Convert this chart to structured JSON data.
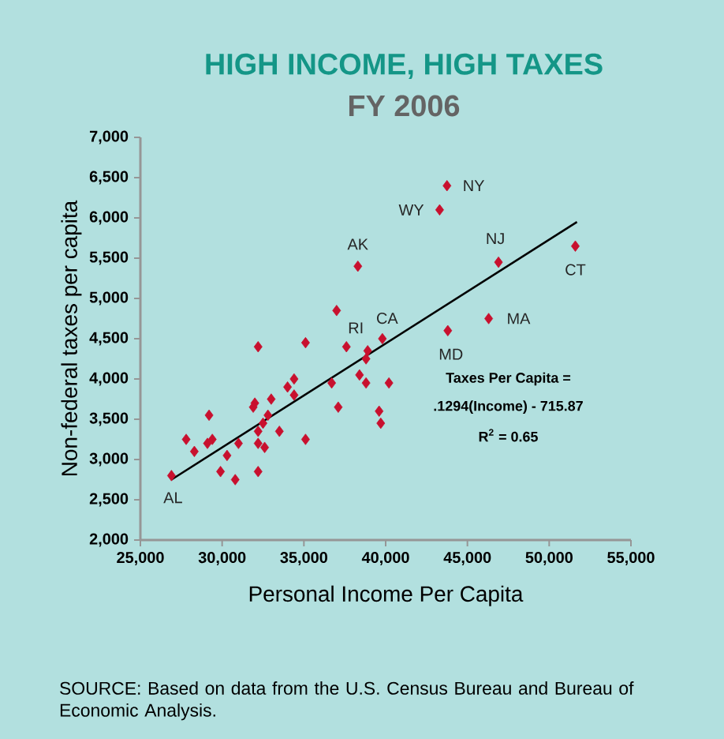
{
  "chart_data": {
    "type": "scatter",
    "title": "HIGH INCOME, HIGH TAXES",
    "subtitle": "FY 2006",
    "xlabel": "Personal Income Per Capita",
    "ylabel": "Non-federal taxes per capita",
    "xlim": [
      25000,
      55000
    ],
    "ylim": [
      2000,
      7000
    ],
    "xticks": [
      {
        "value": 25000,
        "label": "25,000"
      },
      {
        "value": 30000,
        "label": "30,000"
      },
      {
        "value": 35000,
        "label": "35,000"
      },
      {
        "value": 40000,
        "label": "40,000"
      },
      {
        "value": 45000,
        "label": "45,000"
      },
      {
        "value": 50000,
        "label": "50,000"
      },
      {
        "value": 55000,
        "label": "55,000"
      }
    ],
    "yticks": [
      {
        "value": 2000,
        "label": "2,000"
      },
      {
        "value": 2500,
        "label": "2,500"
      },
      {
        "value": 3000,
        "label": "3,000"
      },
      {
        "value": 3500,
        "label": "3,500"
      },
      {
        "value": 4000,
        "label": "4,000"
      },
      {
        "value": 4500,
        "label": "4,500"
      },
      {
        "value": 5000,
        "label": "5,000"
      },
      {
        "value": 5500,
        "label": "5,500"
      },
      {
        "value": 6000,
        "label": "6,000"
      },
      {
        "value": 6500,
        "label": "6,500"
      },
      {
        "value": 7000,
        "label": "7,000"
      }
    ],
    "grid": false,
    "series": [
      {
        "type": "scatter",
        "marker": "diamond",
        "color": "#c8102e",
        "x": [
          43750,
          43300,
          38300,
          46900,
          51600,
          46300,
          43800,
          39800,
          37600,
          26900,
          37000,
          32200,
          35100,
          38900,
          38800,
          38400,
          38800,
          36700,
          40200,
          37100,
          39600,
          39700,
          34400,
          34000,
          34400,
          33000,
          32000,
          31900,
          32800,
          32500,
          33500,
          32200,
          32200,
          32600,
          35100,
          29200,
          27800,
          28300,
          29100,
          29400,
          31000,
          30300,
          29900,
          30800,
          32200
        ],
        "values": [
          6400,
          6100,
          5400,
          5450,
          5650,
          4750,
          4600,
          4500,
          4400,
          2800,
          4850,
          4400,
          4450,
          4350,
          4250,
          4050,
          3950,
          3950,
          3950,
          3650,
          3600,
          3450,
          4000,
          3900,
          3800,
          3750,
          3700,
          3650,
          3550,
          3450,
          3350,
          3350,
          3200,
          3150,
          3250,
          3550,
          3250,
          3100,
          3200,
          3250,
          3200,
          3050,
          2850,
          2750,
          2850
        ]
      },
      {
        "type": "line",
        "color": "#000000",
        "x": [
          26900,
          51700
        ],
        "values": [
          2750,
          5950
        ]
      }
    ],
    "annotations": [
      {
        "text": "NY",
        "x": 43750,
        "y": 6400
      },
      {
        "text": "WY",
        "x": 43300,
        "y": 6100
      },
      {
        "text": "AK",
        "x": 38300,
        "y": 5400
      },
      {
        "text": "NJ",
        "x": 46900,
        "y": 5450
      },
      {
        "text": "CT",
        "x": 51600,
        "y": 5650
      },
      {
        "text": "MA",
        "x": 46300,
        "y": 4750
      },
      {
        "text": "MD",
        "x": 43800,
        "y": 4600
      },
      {
        "text": "CA",
        "x": 39800,
        "y": 4500
      },
      {
        "text": "RI",
        "x": 37600,
        "y": 4400
      },
      {
        "text": "AL",
        "x": 26900,
        "y": 2800
      },
      "Taxes Per Capita =",
      ".1294(Income) - 715.87",
      "R$^{2}$ = 0.65",
      "SOURCE: Based on data from the U.S. Census Bureau and Bureau of Economic Analysis."
    ]
  }
}
